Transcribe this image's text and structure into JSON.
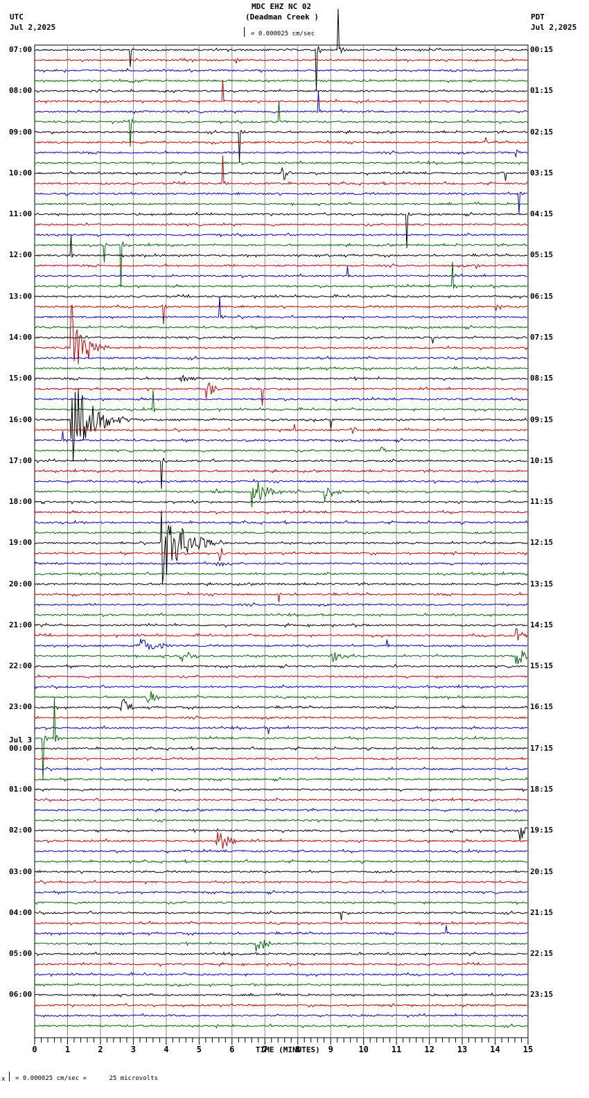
{
  "header": {
    "station": "MDC EHZ NC 02",
    "location": "(Deadman Creek )",
    "scale_text": "= 0.000025 cm/sec",
    "left_tz": "UTC",
    "left_date": "Jul 2,2025",
    "right_tz": "PDT",
    "right_date": "Jul 2,2025"
  },
  "footer": {
    "xlabel": "TIME (MINUTES)",
    "scale_note": "= 0.000025 cm/sec =      25 microvolts",
    "scale_prefix": "x"
  },
  "date_change_label": "Jul 3",
  "colors": {
    "trace_cycle": [
      "#000000",
      "#cc0000",
      "#0000cc",
      "#006600"
    ],
    "grid": "#888888"
  },
  "chart_data": {
    "type": "line",
    "title": "MDC EHZ NC 02 (Deadman Creek )",
    "xlabel": "TIME (MINUTES)",
    "ylabel": "",
    "xlim": [
      0,
      15
    ],
    "x_ticks": [
      0,
      1,
      2,
      3,
      4,
      5,
      6,
      7,
      8,
      9,
      10,
      11,
      12,
      13,
      14,
      15
    ],
    "rows_per_hour": 4,
    "row_minutes": 15,
    "n_rows": 96,
    "left_labels_utc": [
      "07:00",
      "08:00",
      "09:00",
      "10:00",
      "11:00",
      "12:00",
      "13:00",
      "14:00",
      "15:00",
      "16:00",
      "17:00",
      "18:00",
      "19:00",
      "20:00",
      "21:00",
      "22:00",
      "23:00",
      "00:00",
      "01:00",
      "02:00",
      "03:00",
      "04:00",
      "05:00",
      "06:00"
    ],
    "right_labels_pdt": [
      "00:15",
      "01:15",
      "02:15",
      "03:15",
      "04:15",
      "05:15",
      "06:15",
      "07:15",
      "08:15",
      "09:15",
      "10:15",
      "11:15",
      "12:15",
      "13:15",
      "14:15",
      "15:15",
      "16:15",
      "17:15",
      "18:15",
      "19:15",
      "20:15",
      "21:15",
      "22:15",
      "23:15"
    ],
    "events": [
      {
        "row": 0,
        "min": 8.55,
        "amp": 60,
        "dur": 0.3,
        "type": "spike"
      },
      {
        "row": 0,
        "min": 9.2,
        "amp": 60,
        "dur": 0.4,
        "type": "spike"
      },
      {
        "row": 0,
        "min": 2.9,
        "amp": 25,
        "dur": 0.1,
        "type": "spike"
      },
      {
        "row": 1,
        "min": 6.1,
        "amp": 40,
        "dur": 0.15,
        "type": "spike"
      },
      {
        "row": 5,
        "min": 5.7,
        "amp": 30,
        "dur": 0.1,
        "type": "spike"
      },
      {
        "row": 6,
        "min": 8.6,
        "amp": 30,
        "dur": 0.1,
        "type": "spike"
      },
      {
        "row": 7,
        "min": 7.4,
        "amp": 30,
        "dur": 0.2,
        "type": "spike"
      },
      {
        "row": 7,
        "min": 2.9,
        "amp": 35,
        "dur": 0.2,
        "type": "spike"
      },
      {
        "row": 8,
        "min": 6.2,
        "amp": 45,
        "dur": 0.2,
        "type": "spike"
      },
      {
        "row": 9,
        "min": 13.7,
        "amp": 8,
        "dur": 0.1,
        "type": "spike"
      },
      {
        "row": 10,
        "min": 14.6,
        "amp": 60,
        "dur": 0.1,
        "type": "spike"
      },
      {
        "row": 12,
        "min": 7.5,
        "amp": 18,
        "dur": 0.3,
        "type": "burst"
      },
      {
        "row": 12,
        "min": 14.3,
        "amp": 10,
        "dur": 0.1,
        "type": "spike"
      },
      {
        "row": 13,
        "min": 5.7,
        "amp": 40,
        "dur": 0.3,
        "type": "spike"
      },
      {
        "row": 14,
        "min": 14.7,
        "amp": 30,
        "dur": 0.2,
        "type": "spike"
      },
      {
        "row": 16,
        "min": 11.3,
        "amp": 50,
        "dur": 0.3,
        "type": "spike"
      },
      {
        "row": 19,
        "min": 2.6,
        "amp": 60,
        "dur": 0.2,
        "type": "spike"
      },
      {
        "row": 19,
        "min": 2.1,
        "amp": 25,
        "dur": 0.1,
        "type": "spike"
      },
      {
        "row": 20,
        "min": 1.1,
        "amp": 30,
        "dur": 0.1,
        "type": "spike"
      },
      {
        "row": 21,
        "min": 13.4,
        "amp": 30,
        "dur": 0.2,
        "type": "spike"
      },
      {
        "row": 22,
        "min": 9.5,
        "amp": 15,
        "dur": 0.1,
        "type": "spike"
      },
      {
        "row": 23,
        "min": 12.7,
        "amp": 35,
        "dur": 0.2,
        "type": "spike"
      },
      {
        "row": 25,
        "min": 3.9,
        "amp": 25,
        "dur": 0.2,
        "type": "spike"
      },
      {
        "row": 25,
        "min": 14.0,
        "amp": 12,
        "dur": 0.3,
        "type": "burst"
      },
      {
        "row": 26,
        "min": 5.6,
        "amp": 30,
        "dur": 0.2,
        "type": "spike"
      },
      {
        "row": 28,
        "min": 12.1,
        "amp": 8,
        "dur": 0.1,
        "type": "spike"
      },
      {
        "row": 29,
        "min": 1.1,
        "amp": 70,
        "dur": 1.2,
        "type": "quake"
      },
      {
        "row": 32,
        "min": 4.4,
        "amp": 10,
        "dur": 0.6,
        "type": "burst"
      },
      {
        "row": 33,
        "min": 5.2,
        "amp": 15,
        "dur": 0.4,
        "type": "burst"
      },
      {
        "row": 33,
        "min": 6.9,
        "amp": 25,
        "dur": 0.1,
        "type": "spike"
      },
      {
        "row": 35,
        "min": 3.6,
        "amp": 30,
        "dur": 0.2,
        "type": "spike"
      },
      {
        "row": 36,
        "min": 1.1,
        "amp": 70,
        "dur": 2.0,
        "type": "quake"
      },
      {
        "row": 36,
        "min": 9.0,
        "amp": 12,
        "dur": 0.1,
        "type": "spike"
      },
      {
        "row": 37,
        "min": 9.6,
        "amp": 8,
        "dur": 0.3,
        "type": "burst"
      },
      {
        "row": 37,
        "min": 7.9,
        "amp": 8,
        "dur": 0.1,
        "type": "spike"
      },
      {
        "row": 38,
        "min": 0.85,
        "amp": 12,
        "dur": 0.2,
        "type": "spike"
      },
      {
        "row": 39,
        "min": 10.5,
        "amp": 8,
        "dur": 0.3,
        "type": "burst"
      },
      {
        "row": 40,
        "min": 3.85,
        "amp": 40,
        "dur": 0.2,
        "type": "spike"
      },
      {
        "row": 43,
        "min": 6.6,
        "amp": 25,
        "dur": 0.9,
        "type": "burst"
      },
      {
        "row": 43,
        "min": 8.8,
        "amp": 15,
        "dur": 0.6,
        "type": "burst"
      },
      {
        "row": 43,
        "min": 5.5,
        "amp": 8,
        "dur": 0.4,
        "type": "burst"
      },
      {
        "row": 48,
        "min": 3.85,
        "amp": 70,
        "dur": 2.0,
        "type": "quake"
      },
      {
        "row": 49,
        "min": 5.6,
        "amp": 15,
        "dur": 0.3,
        "type": "burst"
      },
      {
        "row": 50,
        "min": 5.5,
        "amp": 12,
        "dur": 0.3,
        "type": "burst"
      },
      {
        "row": 53,
        "min": 7.4,
        "amp": 12,
        "dur": 0.1,
        "type": "spike"
      },
      {
        "row": 58,
        "min": 3.2,
        "amp": 12,
        "dur": 1.0,
        "type": "burst"
      },
      {
        "row": 59,
        "min": 4.4,
        "amp": 12,
        "dur": 0.6,
        "type": "burst"
      },
      {
        "row": 59,
        "min": 9.0,
        "amp": 10,
        "dur": 0.8,
        "type": "burst"
      },
      {
        "row": 59,
        "min": 14.6,
        "amp": 25,
        "dur": 0.4,
        "type": "burst"
      },
      {
        "row": 57,
        "min": 14.6,
        "amp": 15,
        "dur": 0.4,
        "type": "burst"
      },
      {
        "row": 58,
        "min": 10.7,
        "amp": 8,
        "dur": 0.1,
        "type": "spike"
      },
      {
        "row": 64,
        "min": 2.6,
        "amp": 20,
        "dur": 0.4,
        "type": "burst"
      },
      {
        "row": 63,
        "min": 3.4,
        "amp": 20,
        "dur": 0.4,
        "type": "burst"
      },
      {
        "row": 66,
        "min": 7.1,
        "amp": 8,
        "dur": 0.1,
        "type": "spike"
      },
      {
        "row": 67,
        "min": 0.25,
        "amp": 60,
        "dur": 0.8,
        "type": "spike"
      },
      {
        "row": 67,
        "min": 0.6,
        "amp": 60,
        "dur": 0.8,
        "type": "spike"
      },
      {
        "row": 76,
        "min": 14.7,
        "amp": 20,
        "dur": 0.4,
        "type": "burst"
      },
      {
        "row": 77,
        "min": 5.5,
        "amp": 25,
        "dur": 0.6,
        "type": "burst"
      },
      {
        "row": 84,
        "min": 9.3,
        "amp": 10,
        "dur": 0.1,
        "type": "spike"
      },
      {
        "row": 86,
        "min": 12.5,
        "amp": 12,
        "dur": 0.1,
        "type": "spike"
      },
      {
        "row": 87,
        "min": 6.7,
        "amp": 15,
        "dur": 0.5,
        "type": "burst"
      },
      {
        "row": 95,
        "min": 5.5,
        "amp": 20,
        "dur": 0.2,
        "type": "spike"
      }
    ]
  }
}
